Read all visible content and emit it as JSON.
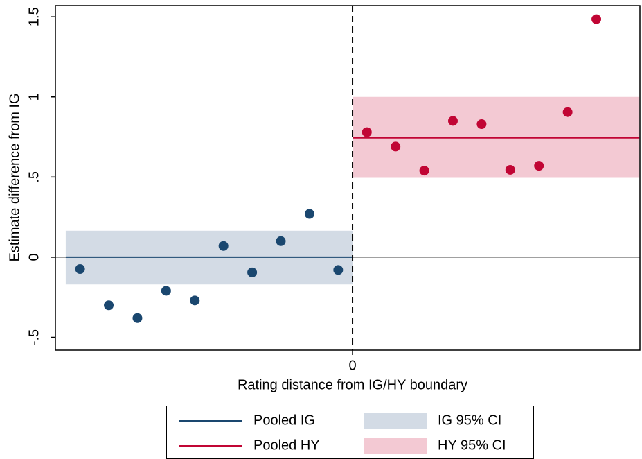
{
  "chart_data": {
    "type": "scatter",
    "x_label": "Rating distance from IG/HY boundary",
    "y_label": "Estimate difference from IG",
    "xlim": [
      -10.36,
      10.02
    ],
    "ylim": [
      -0.58,
      1.57
    ],
    "xticks": [
      0
    ],
    "yticks": [
      {
        "value": -0.5,
        "label": "-.5"
      },
      0,
      {
        "value": 0.5,
        "label": ".5"
      },
      1,
      1.5
    ],
    "hline": 0,
    "vline": 0,
    "series": [
      {
        "color": "#1a476f",
        "x": [
          -9.5,
          -8.5,
          -7.5,
          -6.5,
          -5.5,
          -4.5,
          -3.5,
          -2.5,
          -1.5,
          -0.5
        ],
        "values": [
          -0.074,
          -0.3,
          -0.38,
          -0.21,
          -0.27,
          0.07,
          -0.095,
          0.1,
          0.27,
          -0.08
        ]
      },
      {
        "color": "#c10534",
        "x": [
          0.5,
          1.5,
          2.5,
          3.5,
          4.5,
          5.5,
          6.5,
          7.5,
          8.5
        ],
        "values": [
          0.78,
          0.69,
          0.54,
          0.85,
          0.83,
          0.545,
          0.57,
          0.905,
          1.485
        ]
      }
    ],
    "bands": [
      {
        "name": "IG 95% CI",
        "color": "#d3dbe5",
        "lower": -0.17,
        "upper": 0.165,
        "x_range": [
          -10,
          0
        ]
      },
      {
        "name": "HY 95% CI",
        "color": "#f3c9d3",
        "lower": 0.495,
        "upper": 1.0,
        "x_range": [
          0,
          10
        ]
      }
    ],
    "fits": [
      {
        "name": "Pooled IG",
        "color": "#1a476f",
        "value": 0,
        "x_range": [
          -10,
          0
        ]
      },
      {
        "name": "Pooled HY",
        "color": "#c10534",
        "value": 0.745,
        "x_range": [
          0,
          10
        ]
      }
    ]
  }
}
